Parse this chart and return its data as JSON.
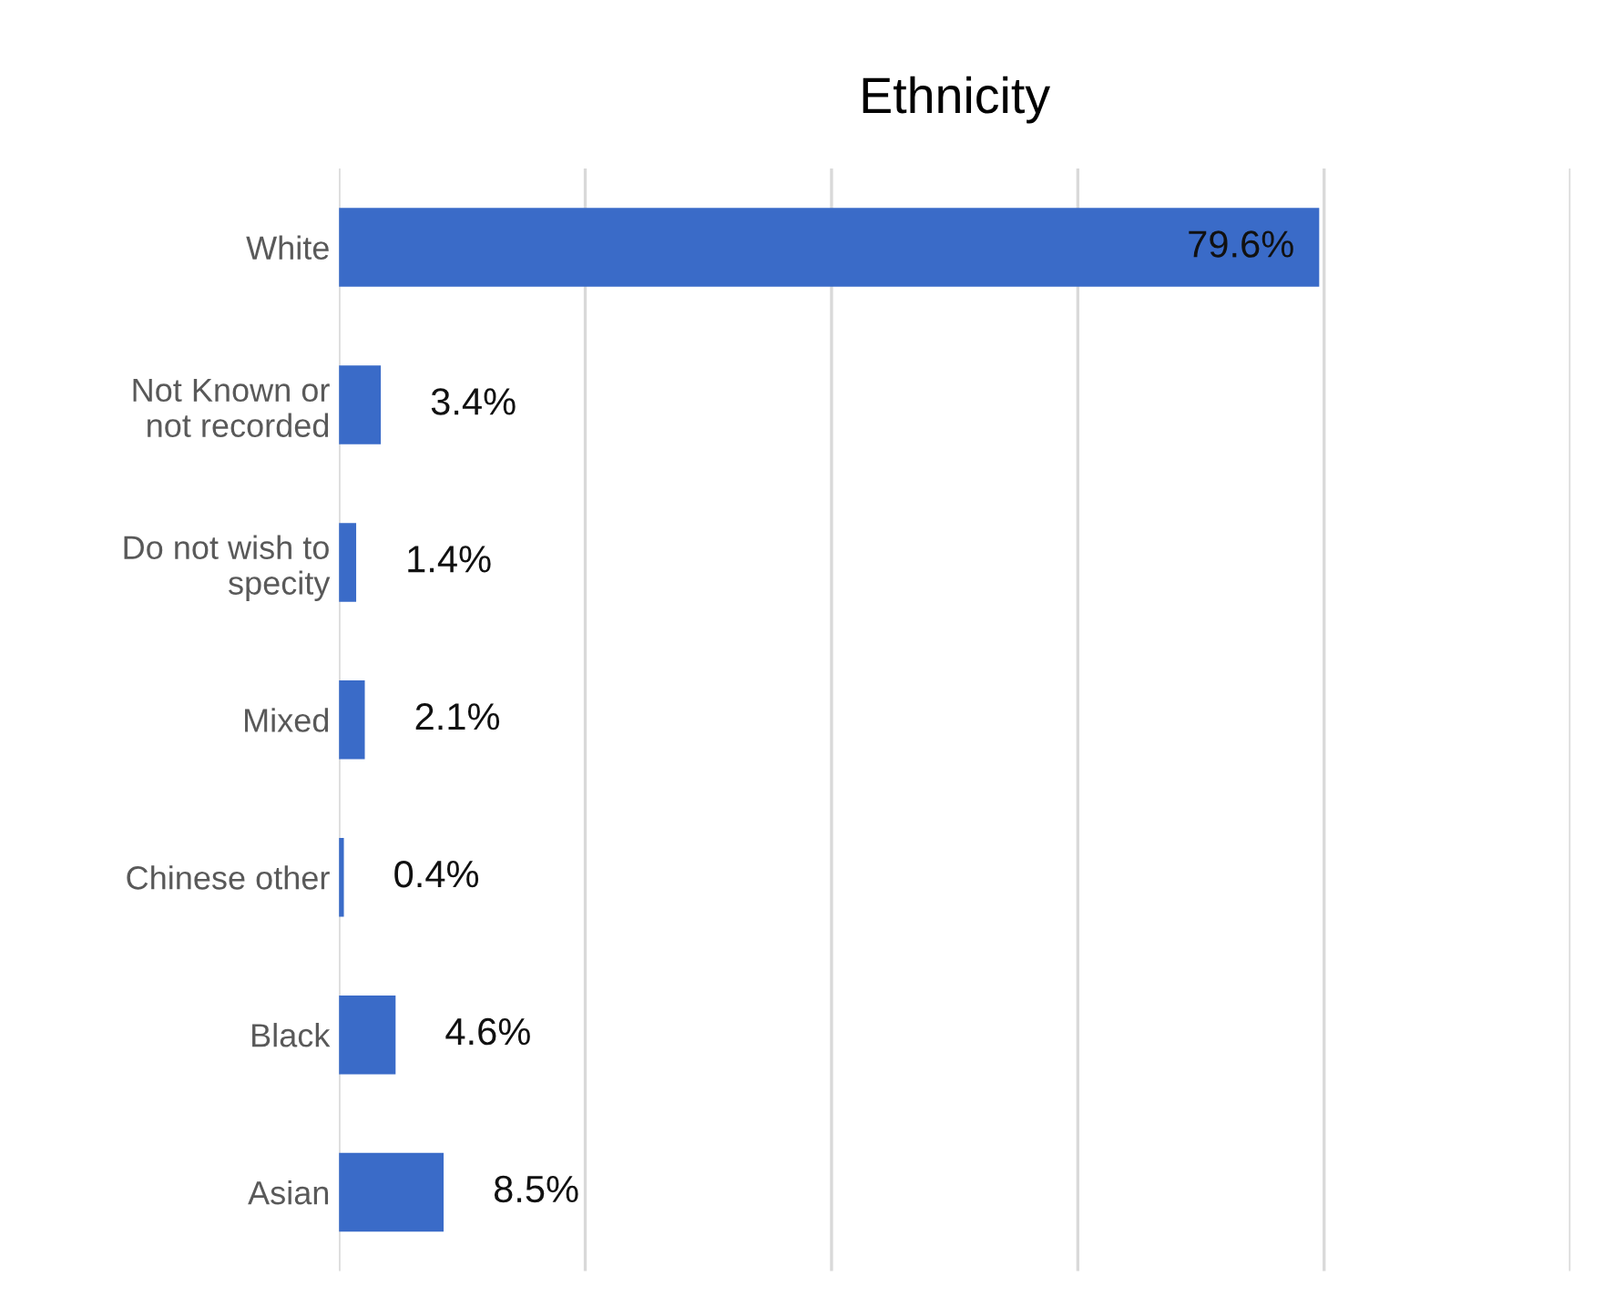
{
  "chart_data": {
    "type": "bar",
    "orientation": "horizontal",
    "title": "Ethnicity",
    "categories": [
      "White",
      "Not Known or\nnot recorded",
      "Do not wish to\nspecity",
      "Mixed",
      "Chinese other",
      "Black",
      "Asian"
    ],
    "values": [
      79.6,
      3.4,
      1.4,
      2.1,
      0.4,
      4.6,
      8.5
    ],
    "value_labels": [
      "79.6%",
      "3.4%",
      "1.4%",
      "2.1%",
      "0.4%",
      "4.6%",
      "8.5%"
    ],
    "color": "#3a6bc8",
    "xlim": [
      0,
      100
    ],
    "xticks": [
      {
        "value": 0,
        "label": null
      },
      {
        "value": 20,
        "label": null
      },
      {
        "value": 40,
        "label": null
      },
      {
        "value": 60,
        "label": null
      },
      {
        "value": 80,
        "label": null
      },
      {
        "value": 100,
        "label": null
      }
    ],
    "tick_labels": "y",
    "grid": "x",
    "legend": false
  }
}
